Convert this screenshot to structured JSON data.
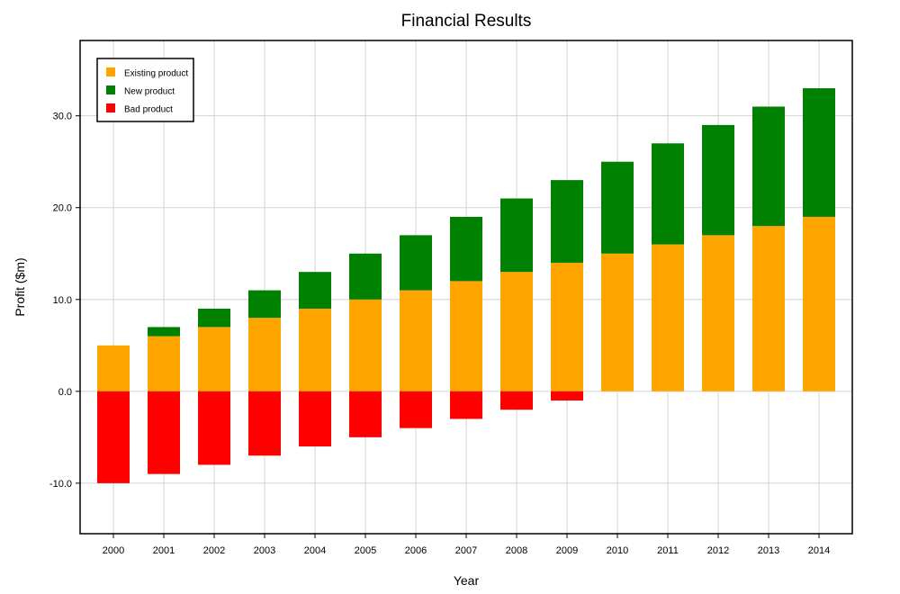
{
  "chart_data": {
    "type": "bar",
    "stacked": true,
    "title": "Financial Results",
    "xlabel": "Year",
    "ylabel": "Profit ($m)",
    "categories": [
      "2000",
      "2001",
      "2002",
      "2003",
      "2004",
      "2005",
      "2006",
      "2007",
      "2008",
      "2009",
      "2010",
      "2011",
      "2012",
      "2013",
      "2014"
    ],
    "series": [
      {
        "name": "Existing product",
        "color": "#ffa500",
        "values": [
          5,
          6,
          7,
          8,
          9,
          10,
          11,
          12,
          13,
          14,
          15,
          16,
          17,
          18,
          19
        ]
      },
      {
        "name": "New product",
        "color": "#008000",
        "values": [
          0,
          1,
          2,
          3,
          4,
          5,
          6,
          7,
          8,
          9,
          10,
          11,
          12,
          13,
          14
        ]
      },
      {
        "name": "Bad product",
        "color": "#ff0000",
        "values": [
          -10,
          -9,
          -8,
          -7,
          -6,
          -5,
          -4,
          -3,
          -2,
          -1,
          0,
          0,
          0,
          0,
          0
        ]
      }
    ],
    "ylim": [
      -15.5,
      38.2
    ],
    "yticks": [
      -10,
      0,
      10,
      20,
      30
    ],
    "ytick_labels": [
      "-10.0",
      "0.0",
      "10.0",
      "20.0",
      "30.0"
    ],
    "grid": true,
    "legend_position": "top-left"
  }
}
